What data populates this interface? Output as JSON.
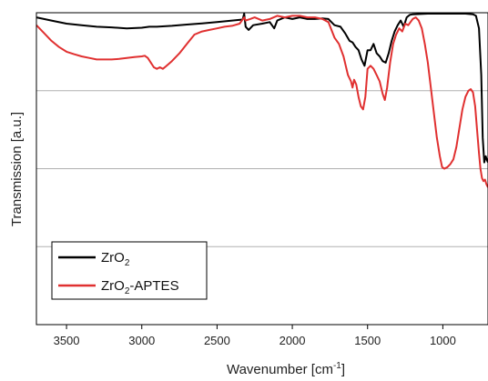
{
  "chart_data": {
    "type": "line",
    "title": "",
    "xlabel": "Wavenumber [cm",
    "xlabel_sup": "-1",
    "xlabel_suffix": "]",
    "ylabel": "Transmission [a.u.]",
    "xlim": [
      3700,
      700
    ],
    "x_reversed": true,
    "ylim": [
      0,
      1
    ],
    "x_ticks": [
      3500,
      3000,
      2500,
      2000,
      1500,
      1000
    ],
    "x_tick_labels": [
      "3500",
      "3000",
      "2500",
      "2000",
      "1500",
      "1000"
    ],
    "y_gridlines": [
      0.25,
      0.5,
      0.75
    ],
    "grid": true,
    "legend_position": "bottom-left",
    "series": [
      {
        "name_main": "ZrO",
        "name_sub": "2",
        "name_suffix": "",
        "color": "#000000",
        "points": [
          [
            3700,
            0.985
          ],
          [
            3600,
            0.975
          ],
          [
            3500,
            0.965
          ],
          [
            3400,
            0.96
          ],
          [
            3300,
            0.955
          ],
          [
            3200,
            0.953
          ],
          [
            3100,
            0.95
          ],
          [
            3000,
            0.952
          ],
          [
            2950,
            0.955
          ],
          [
            2900,
            0.955
          ],
          [
            2800,
            0.958
          ],
          [
            2700,
            0.962
          ],
          [
            2600,
            0.966
          ],
          [
            2500,
            0.97
          ],
          [
            2400,
            0.975
          ],
          [
            2330,
            0.978
          ],
          [
            2320,
            0.997
          ],
          [
            2310,
            0.955
          ],
          [
            2290,
            0.945
          ],
          [
            2260,
            0.96
          ],
          [
            2200,
            0.965
          ],
          [
            2150,
            0.97
          ],
          [
            2120,
            0.95
          ],
          [
            2100,
            0.975
          ],
          [
            2050,
            0.985
          ],
          [
            2000,
            0.98
          ],
          [
            1950,
            0.985
          ],
          [
            1900,
            0.98
          ],
          [
            1850,
            0.98
          ],
          [
            1800,
            0.982
          ],
          [
            1760,
            0.98
          ],
          [
            1720,
            0.96
          ],
          [
            1680,
            0.955
          ],
          [
            1650,
            0.935
          ],
          [
            1620,
            0.91
          ],
          [
            1600,
            0.905
          ],
          [
            1580,
            0.89
          ],
          [
            1560,
            0.88
          ],
          [
            1540,
            0.85
          ],
          [
            1520,
            0.83
          ],
          [
            1500,
            0.88
          ],
          [
            1480,
            0.88
          ],
          [
            1460,
            0.9
          ],
          [
            1440,
            0.87
          ],
          [
            1420,
            0.86
          ],
          [
            1400,
            0.845
          ],
          [
            1380,
            0.84
          ],
          [
            1360,
            0.87
          ],
          [
            1340,
            0.91
          ],
          [
            1320,
            0.94
          ],
          [
            1300,
            0.96
          ],
          [
            1280,
            0.975
          ],
          [
            1260,
            0.955
          ],
          [
            1240,
            0.985
          ],
          [
            1220,
            0.993
          ],
          [
            1200,
            0.995
          ],
          [
            1100,
            0.997
          ],
          [
            1000,
            0.997
          ],
          [
            900,
            0.997
          ],
          [
            850,
            0.997
          ],
          [
            800,
            0.995
          ],
          [
            780,
            0.99
          ],
          [
            760,
            0.95
          ],
          [
            745,
            0.8
          ],
          [
            735,
            0.6
          ],
          [
            725,
            0.52
          ],
          [
            715,
            0.54
          ],
          [
            705,
            0.525
          ],
          [
            700,
            0.52
          ]
        ]
      },
      {
        "name_main": "ZrO",
        "name_sub": "2",
        "name_suffix": "-APTES",
        "color": "#e03030",
        "points": [
          [
            3700,
            0.96
          ],
          [
            3650,
            0.935
          ],
          [
            3600,
            0.91
          ],
          [
            3550,
            0.89
          ],
          [
            3500,
            0.875
          ],
          [
            3450,
            0.867
          ],
          [
            3400,
            0.86
          ],
          [
            3350,
            0.855
          ],
          [
            3300,
            0.85
          ],
          [
            3250,
            0.85
          ],
          [
            3200,
            0.85
          ],
          [
            3150,
            0.852
          ],
          [
            3100,
            0.855
          ],
          [
            3050,
            0.858
          ],
          [
            3000,
            0.86
          ],
          [
            2980,
            0.862
          ],
          [
            2960,
            0.855
          ],
          [
            2940,
            0.84
          ],
          [
            2920,
            0.825
          ],
          [
            2900,
            0.82
          ],
          [
            2880,
            0.825
          ],
          [
            2860,
            0.82
          ],
          [
            2840,
            0.828
          ],
          [
            2800,
            0.845
          ],
          [
            2750,
            0.87
          ],
          [
            2700,
            0.9
          ],
          [
            2650,
            0.93
          ],
          [
            2600,
            0.94
          ],
          [
            2550,
            0.945
          ],
          [
            2500,
            0.95
          ],
          [
            2450,
            0.955
          ],
          [
            2400,
            0.958
          ],
          [
            2350,
            0.965
          ],
          [
            2320,
            0.985
          ],
          [
            2310,
            0.975
          ],
          [
            2280,
            0.98
          ],
          [
            2250,
            0.985
          ],
          [
            2200,
            0.975
          ],
          [
            2150,
            0.98
          ],
          [
            2100,
            0.99
          ],
          [
            2050,
            0.985
          ],
          [
            2000,
            0.99
          ],
          [
            1950,
            0.99
          ],
          [
            1900,
            0.985
          ],
          [
            1850,
            0.985
          ],
          [
            1800,
            0.98
          ],
          [
            1760,
            0.97
          ],
          [
            1720,
            0.92
          ],
          [
            1690,
            0.9
          ],
          [
            1660,
            0.86
          ],
          [
            1630,
            0.8
          ],
          [
            1610,
            0.78
          ],
          [
            1600,
            0.76
          ],
          [
            1590,
            0.785
          ],
          [
            1575,
            0.77
          ],
          [
            1560,
            0.73
          ],
          [
            1545,
            0.7
          ],
          [
            1530,
            0.69
          ],
          [
            1515,
            0.73
          ],
          [
            1500,
            0.82
          ],
          [
            1480,
            0.83
          ],
          [
            1460,
            0.82
          ],
          [
            1440,
            0.8
          ],
          [
            1420,
            0.78
          ],
          [
            1400,
            0.74
          ],
          [
            1385,
            0.72
          ],
          [
            1370,
            0.76
          ],
          [
            1350,
            0.84
          ],
          [
            1330,
            0.9
          ],
          [
            1310,
            0.93
          ],
          [
            1290,
            0.95
          ],
          [
            1270,
            0.94
          ],
          [
            1250,
            0.965
          ],
          [
            1230,
            0.96
          ],
          [
            1200,
            0.98
          ],
          [
            1180,
            0.985
          ],
          [
            1160,
            0.975
          ],
          [
            1140,
            0.95
          ],
          [
            1120,
            0.9
          ],
          [
            1100,
            0.84
          ],
          [
            1080,
            0.76
          ],
          [
            1060,
            0.68
          ],
          [
            1040,
            0.6
          ],
          [
            1020,
            0.54
          ],
          [
            1005,
            0.505
          ],
          [
            990,
            0.5
          ],
          [
            970,
            0.505
          ],
          [
            950,
            0.515
          ],
          [
            930,
            0.53
          ],
          [
            910,
            0.57
          ],
          [
            890,
            0.63
          ],
          [
            870,
            0.69
          ],
          [
            850,
            0.73
          ],
          [
            830,
            0.75
          ],
          [
            815,
            0.755
          ],
          [
            800,
            0.745
          ],
          [
            785,
            0.7
          ],
          [
            770,
            0.61
          ],
          [
            760,
            0.55
          ],
          [
            750,
            0.5
          ],
          [
            740,
            0.47
          ],
          [
            730,
            0.46
          ],
          [
            720,
            0.465
          ],
          [
            710,
            0.45
          ],
          [
            700,
            0.44
          ]
        ]
      }
    ]
  }
}
